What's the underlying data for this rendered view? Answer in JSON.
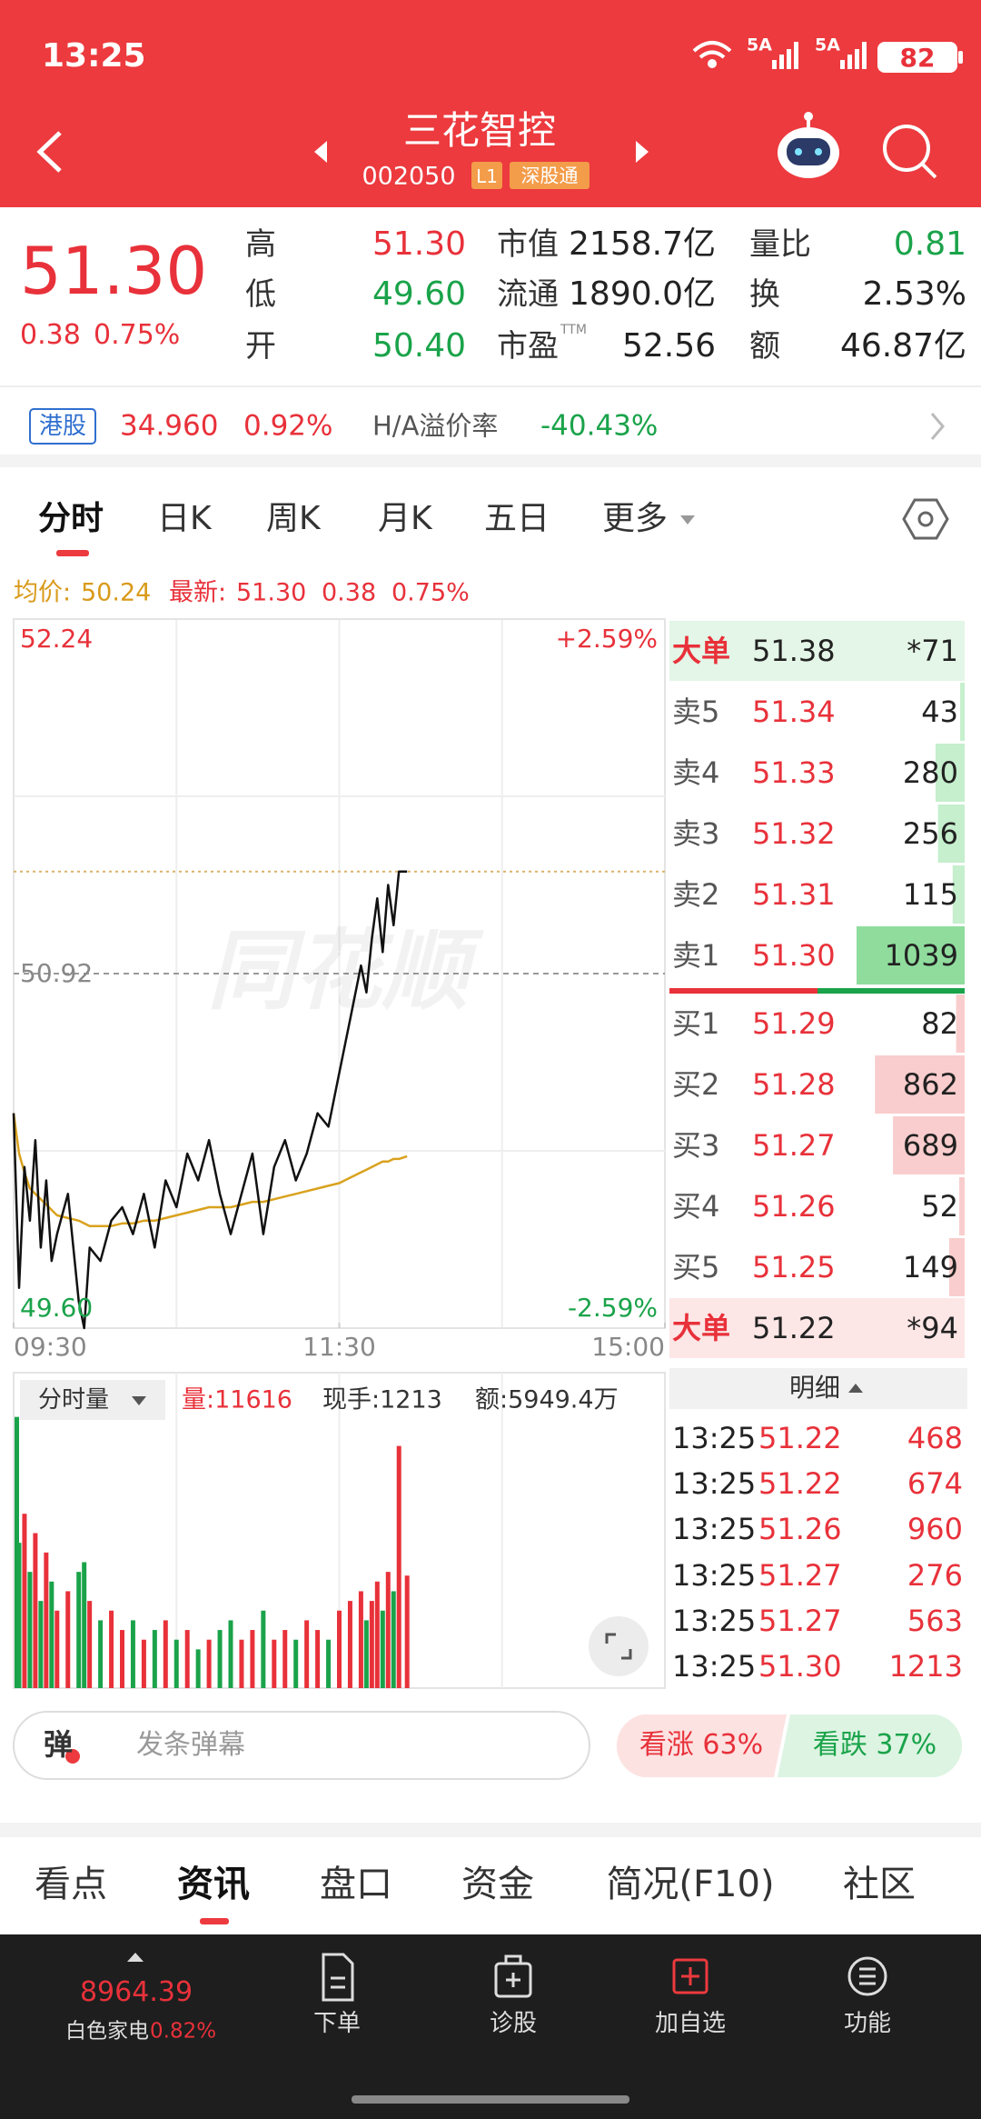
{
  "status_bar": {
    "time": "13:25",
    "network_1": "5A",
    "network_2": "5A",
    "battery": "82"
  },
  "header": {
    "title": "三花智控",
    "code": "002050",
    "level": "L1",
    "connect": "深股通"
  },
  "quote": {
    "price": "51.30",
    "change": "0.38",
    "change_pct": "0.75%",
    "stats": [
      [
        {
          "label": "高",
          "value": "51.30"
        },
        {
          "label": "低",
          "value": "49.60"
        },
        {
          "label": "开",
          "value": "50.40"
        }
      ],
      [
        {
          "label": "市值",
          "value": "2158.7亿"
        },
        {
          "label": "流通",
          "value": "1890.0亿"
        },
        {
          "label": "市盈",
          "sup": "TTM",
          "value": "52.56"
        }
      ],
      [
        {
          "label": "量比",
          "value": "0.81"
        },
        {
          "label": "换",
          "value": "2.53%"
        },
        {
          "label": "额",
          "value": "46.87亿"
        }
      ]
    ]
  },
  "hk_quote": {
    "market": "港股",
    "price": "34.960",
    "change_pct": "0.92%",
    "premium_label": "H/A溢价率",
    "premium": "-40.43%"
  },
  "chart_tabs": [
    "分时",
    "日K",
    "周K",
    "月K",
    "五日",
    "更多"
  ],
  "info_line": {
    "avg_label": "均价:",
    "avg": "50.24",
    "last_label": "最新:",
    "last": "51.30",
    "change": "0.38",
    "change_pct": "0.75%"
  },
  "watermark": "同花顺",
  "chart_data": [
    {
      "type": "line",
      "x": [
        "09:30",
        "09:32",
        "09:34",
        "09:36",
        "09:38",
        "09:40",
        "09:42",
        "09:44",
        "09:46",
        "09:50",
        "09:54",
        "09:56",
        "09:58",
        "10:02",
        "10:06",
        "10:10",
        "10:14",
        "10:18",
        "10:22",
        "10:26",
        "10:30",
        "10:34",
        "10:38",
        "10:42",
        "10:46",
        "10:50",
        "10:54",
        "10:58",
        "11:02",
        "11:06",
        "11:10",
        "11:14",
        "11:18",
        "11:22",
        "11:26",
        "11:30",
        "13:04",
        "13:08",
        "13:10",
        "13:12",
        "13:14",
        "13:16",
        "13:18",
        "13:20",
        "13:22",
        "13:25"
      ],
      "series": [
        {
          "color": "#111111",
          "values": [
            50.4,
            49.75,
            50.2,
            50.0,
            50.3,
            49.9,
            50.15,
            49.85,
            49.95,
            50.1,
            49.7,
            49.6,
            49.9,
            49.85,
            50.0,
            50.05,
            49.95,
            50.1,
            49.9,
            50.15,
            50.05,
            50.25,
            50.15,
            50.3,
            50.1,
            49.95,
            50.1,
            50.25,
            49.95,
            50.2,
            50.3,
            50.15,
            50.25,
            50.4,
            50.35,
            50.55,
            50.75,
            50.95,
            50.85,
            51.05,
            51.2,
            51.0,
            51.25,
            51.1,
            51.3,
            51.3
          ]
        },
        {
          "color": "#D9A21E",
          "values": [
            50.4,
            50.25,
            50.18,
            50.12,
            50.1,
            50.08,
            50.06,
            50.04,
            50.02,
            50.01,
            50.0,
            49.99,
            49.98,
            49.98,
            49.98,
            49.99,
            49.99,
            50.0,
            50.0,
            50.01,
            50.02,
            50.03,
            50.04,
            50.05,
            50.05,
            50.05,
            50.06,
            50.07,
            50.07,
            50.08,
            50.09,
            50.1,
            50.11,
            50.12,
            50.13,
            50.14,
            50.16,
            50.18,
            50.19,
            50.2,
            50.21,
            50.22,
            50.22,
            50.23,
            50.23,
            50.24
          ]
        }
      ],
      "xticks": [
        "09:30",
        "11:30",
        "15:00"
      ],
      "ylim": [
        49.6,
        52.24
      ],
      "yticks": [
        52.24,
        50.92,
        {
          "value": 49.6,
          "label": "49.60"
        }
      ],
      "y2lim": [
        -2.59,
        2.59
      ],
      "y2ticks": [
        {
          "value": 2.59,
          "label": "+2.59%"
        },
        {
          "value": -2.59,
          "label": "-2.59%"
        }
      ]
    },
    {
      "type": "bar",
      "x": [
        "09:30",
        "09:32",
        "09:34",
        "09:36",
        "09:38",
        "09:40",
        "09:42",
        "09:44",
        "09:46",
        "09:50",
        "09:54",
        "09:56",
        "09:58",
        "10:02",
        "10:06",
        "10:10",
        "10:14",
        "10:18",
        "10:22",
        "10:26",
        "10:30",
        "10:34",
        "10:38",
        "10:42",
        "10:46",
        "10:50",
        "10:54",
        "10:58",
        "11:02",
        "11:06",
        "11:10",
        "11:14",
        "11:18",
        "11:22",
        "11:26",
        "11:30",
        "13:04",
        "13:08",
        "13:10",
        "13:12",
        "13:14",
        "13:16",
        "13:18",
        "13:20",
        "13:22",
        "13:25"
      ],
      "values": [
        28000,
        15000,
        18000,
        12000,
        16000,
        9000,
        14000,
        11000,
        8000,
        10000,
        12000,
        13000,
        9000,
        7000,
        8000,
        6000,
        7000,
        5000,
        6000,
        7000,
        5000,
        6000,
        4000,
        5000,
        6000,
        7000,
        5000,
        6000,
        8000,
        5000,
        6000,
        5000,
        7000,
        6000,
        5000,
        8000,
        9000,
        10000,
        7000,
        9000,
        11000,
        8000,
        12000,
        10000,
        25000,
        11616
      ],
      "ylim": [
        0,
        29000
      ],
      "up_color": "#E8313A",
      "down_color": "#1AA34A"
    }
  ],
  "volume_info": {
    "selector": "分时量",
    "volume": "量:11616",
    "last_hand": "现手:1213",
    "amount": "额:5949.4万"
  },
  "order_book": {
    "rows": [
      {
        "label": "大单",
        "price": "51.38",
        "volume": "*71"
      },
      {
        "label": "卖5",
        "price": "51.34",
        "volume": 43
      },
      {
        "label": "卖4",
        "price": "51.33",
        "volume": 280
      },
      {
        "label": "卖3",
        "price": "51.32",
        "volume": 256
      },
      {
        "label": "卖2",
        "price": "51.31",
        "volume": 115
      },
      {
        "label": "卖1",
        "price": "51.30",
        "volume": 1039
      },
      {
        "label": "买1",
        "price": "51.29",
        "volume": 82
      },
      {
        "label": "买2",
        "price": "51.28",
        "volume": 862
      },
      {
        "label": "买3",
        "price": "51.27",
        "volume": 689
      },
      {
        "label": "买4",
        "price": "51.26",
        "volume": 52
      },
      {
        "label": "买5",
        "price": "51.25",
        "volume": 149
      },
      {
        "label": "大单",
        "price": "51.22",
        "volume": "*94"
      }
    ]
  },
  "trades": {
    "title": "明细",
    "rows": [
      {
        "time": "13:25",
        "price": "51.22",
        "volume": "468"
      },
      {
        "time": "13:25",
        "price": "51.22",
        "volume": "674"
      },
      {
        "time": "13:25",
        "price": "51.26",
        "volume": "960"
      },
      {
        "time": "13:25",
        "price": "51.27",
        "volume": "276"
      },
      {
        "time": "13:25",
        "price": "51.27",
        "volume": "563"
      },
      {
        "time": "13:25",
        "price": "51.30",
        "volume": "1213"
      }
    ]
  },
  "danmaku": {
    "icon": "弹",
    "placeholder": "发条弹幕"
  },
  "sentiment": {
    "up": "看涨 63%",
    "down": "看跌 37%"
  },
  "bottom_tabs": [
    "看点",
    "资讯",
    "盘口",
    "资金",
    "简况(F10)",
    "社区"
  ],
  "nav": {
    "index_value": "8964.39",
    "index_name": "白色家电",
    "index_change": "0.82%",
    "items": [
      "下单",
      "诊股",
      "加自选",
      "功能"
    ]
  }
}
